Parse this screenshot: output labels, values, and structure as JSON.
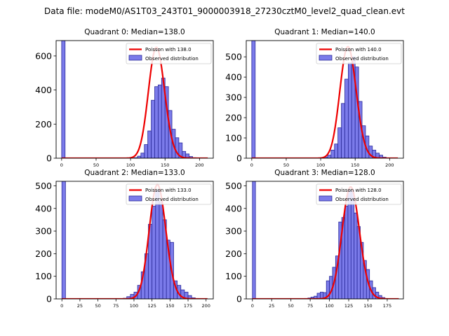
{
  "figure": {
    "suptitle": "Data file: modeM0/AS1T03_243T01_9000003918_27230cztM0_level2_quad_clean.evt"
  },
  "colors": {
    "bar_fill": "#7b7bea",
    "bar_edge": "#2a2a9a",
    "poisson_line": "#ee0000",
    "axis": "#000000"
  },
  "chart_data": [
    {
      "type": "bar",
      "title": "Quadrant 0: Median=138.0",
      "xlim": [
        -8,
        220
      ],
      "ylim": [
        0,
        690
      ],
      "xticks": [
        0,
        50,
        100,
        150,
        200
      ],
      "yticks": [
        0,
        200,
        400,
        600
      ],
      "bin_width": 5,
      "bins": [
        [
          0,
          690
        ],
        [
          105,
          3
        ],
        [
          110,
          12
        ],
        [
          115,
          30
        ],
        [
          120,
          80
        ],
        [
          125,
          160
        ],
        [
          130,
          340
        ],
        [
          135,
          420
        ],
        [
          140,
          430
        ],
        [
          145,
          470
        ],
        [
          150,
          420
        ],
        [
          155,
          280
        ],
        [
          160,
          170
        ],
        [
          165,
          120
        ],
        [
          170,
          90
        ],
        [
          175,
          40
        ],
        [
          180,
          25
        ],
        [
          185,
          10
        ],
        [
          190,
          3
        ]
      ],
      "fit": {
        "mean": 138.0,
        "amplitude": 650,
        "x_range": [
          0,
          212
        ]
      },
      "legend": {
        "fit_label": "Poisson with 138.0",
        "obs_label": "Observed distribution"
      }
    },
    {
      "type": "bar",
      "title": "Quadrant 1: Median=140.0",
      "xlim": [
        -8,
        220
      ],
      "ylim": [
        0,
        580
      ],
      "xticks": [
        0,
        50,
        100,
        150,
        200
      ],
      "yticks": [
        0,
        100,
        200,
        300,
        400,
        500
      ],
      "bin_width": 5,
      "bins": [
        [
          0,
          580
        ],
        [
          105,
          5
        ],
        [
          110,
          15
        ],
        [
          115,
          40
        ],
        [
          120,
          70
        ],
        [
          125,
          150
        ],
        [
          130,
          270
        ],
        [
          135,
          390
        ],
        [
          140,
          470
        ],
        [
          145,
          500
        ],
        [
          150,
          450
        ],
        [
          155,
          280
        ],
        [
          160,
          160
        ],
        [
          165,
          110
        ],
        [
          170,
          60
        ],
        [
          175,
          40
        ],
        [
          180,
          25
        ],
        [
          185,
          15
        ],
        [
          190,
          5
        ]
      ],
      "fit": {
        "mean": 140.0,
        "amplitude": 550,
        "x_range": [
          0,
          212
        ]
      },
      "legend": {
        "fit_label": "Poisson with 140.0",
        "obs_label": "Observed distribution"
      }
    },
    {
      "type": "bar",
      "title": "Quadrant 2: Median=133.0",
      "xlim": [
        -8,
        210
      ],
      "ylim": [
        0,
        520
      ],
      "xticks": [
        0,
        25,
        50,
        75,
        100,
        125,
        150,
        175,
        200
      ],
      "yticks": [
        0,
        100,
        200,
        300,
        400,
        500
      ],
      "bin_width": 5,
      "bins": [
        [
          0,
          520
        ],
        [
          85,
          3
        ],
        [
          90,
          10
        ],
        [
          95,
          20
        ],
        [
          100,
          30
        ],
        [
          105,
          60
        ],
        [
          110,
          120
        ],
        [
          115,
          200
        ],
        [
          120,
          330
        ],
        [
          125,
          410
        ],
        [
          130,
          480
        ],
        [
          135,
          430
        ],
        [
          140,
          350
        ],
        [
          145,
          260
        ],
        [
          150,
          250
        ],
        [
          155,
          80
        ],
        [
          160,
          60
        ],
        [
          165,
          40
        ],
        [
          170,
          30
        ],
        [
          175,
          15
        ],
        [
          180,
          5
        ],
        [
          185,
          2
        ]
      ],
      "fit": {
        "mean": 133.0,
        "amplitude": 505,
        "x_range": [
          0,
          202
        ]
      },
      "legend": {
        "fit_label": "Poisson with 133.0",
        "obs_label": "Observed distribution"
      }
    },
    {
      "type": "bar",
      "title": "Quadrant 3: Median=128.0",
      "xlim": [
        -8,
        196
      ],
      "ylim": [
        0,
        520
      ],
      "xticks": [
        0,
        25,
        50,
        75,
        100,
        125,
        150,
        175
      ],
      "yticks": [
        0,
        100,
        200,
        300,
        400,
        500
      ],
      "bin_width": 4,
      "bins": [
        [
          0,
          520
        ],
        [
          68,
          2
        ],
        [
          72,
          4
        ],
        [
          76,
          8
        ],
        [
          80,
          12
        ],
        [
          84,
          25
        ],
        [
          88,
          30
        ],
        [
          92,
          28
        ],
        [
          96,
          80
        ],
        [
          100,
          100
        ],
        [
          104,
          140
        ],
        [
          108,
          190
        ],
        [
          112,
          340
        ],
        [
          116,
          360
        ],
        [
          120,
          410
        ],
        [
          124,
          480
        ],
        [
          128,
          480
        ],
        [
          132,
          380
        ],
        [
          136,
          320
        ],
        [
          140,
          250
        ],
        [
          144,
          170
        ],
        [
          148,
          130
        ],
        [
          152,
          80
        ],
        [
          156,
          50
        ],
        [
          160,
          30
        ],
        [
          164,
          15
        ],
        [
          168,
          6
        ]
      ],
      "fit": {
        "mean": 128.0,
        "amplitude": 495,
        "x_range": [
          0,
          190
        ]
      },
      "legend": {
        "fit_label": "Poisson with 128.0",
        "obs_label": "Observed distribution"
      }
    }
  ]
}
